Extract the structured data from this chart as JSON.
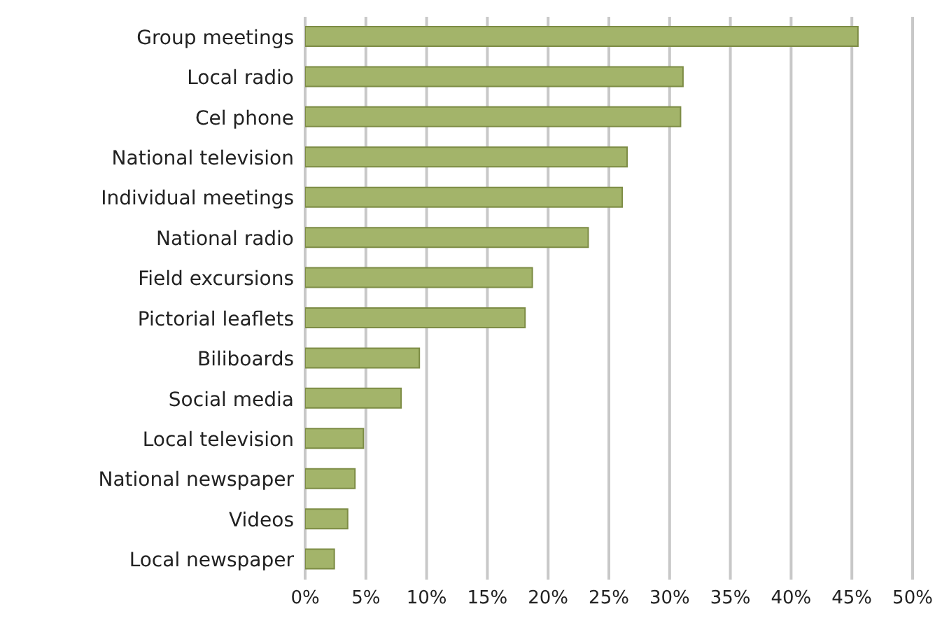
{
  "chart_data": {
    "type": "bar",
    "orientation": "horizontal",
    "categories": [
      "Group meetings",
      "Local radio",
      "Cel phone",
      "National television",
      "Individual meetings",
      "National radio",
      "Field excursions",
      "Pictorial leaflets",
      "Biliboards",
      "Social media",
      "Local television",
      "National newspaper",
      "Videos",
      "Local newspaper"
    ],
    "values": [
      45.5,
      31.1,
      30.9,
      26.5,
      26.1,
      23.3,
      18.7,
      18.1,
      9.4,
      7.9,
      4.8,
      4.1,
      3.5,
      2.4
    ],
    "color": "#a3b46a",
    "xlim": [
      0,
      50
    ],
    "xticks": [
      {
        "value": 0,
        "label": "0%"
      },
      {
        "value": 5,
        "label": "5%"
      },
      {
        "value": 10,
        "label": "10%"
      },
      {
        "value": 15,
        "label": "15%"
      },
      {
        "value": 20,
        "label": "20%"
      },
      {
        "value": 25,
        "label": "25%"
      },
      {
        "value": 30,
        "label": "30%"
      },
      {
        "value": 35,
        "label": "35%"
      },
      {
        "value": 40,
        "label": "40%"
      },
      {
        "value": 45,
        "label": "45%"
      },
      {
        "value": 50,
        "label": "50%"
      }
    ],
    "grid": "x"
  }
}
